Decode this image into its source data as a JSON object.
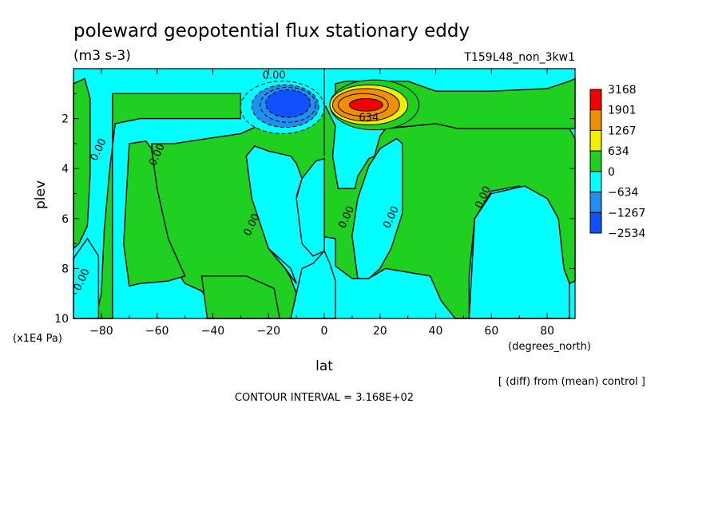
{
  "chart_data": {
    "type": "heatmap",
    "title": "poleward geopotential flux stationary eddy",
    "units": "(m3 s-3)",
    "run_label": "T159L48_non_3kw1",
    "xlabel": "lat",
    "xunits": "(degrees_north)",
    "ylabel": "plev",
    "yunits": "(x1E4 Pa)",
    "note": "[ (diff) from (mean) control ]",
    "contour_interval": "CONTOUR INTERVAL = 3.168E+02",
    "xlim": [
      -90,
      90
    ],
    "ylim": [
      10,
      0
    ],
    "xticks": [
      -80,
      -60,
      -40,
      -20,
      0,
      20,
      40,
      60,
      80
    ],
    "yticks": [
      2,
      4,
      6,
      8,
      10
    ],
    "contour_labels": [
      {
        "text": "0.00",
        "x": -18,
        "y": 0.4
      },
      {
        "text": "634",
        "x": 16,
        "y": 2.1
      },
      {
        "text": "0.00",
        "x": -80,
        "y": 3.3
      },
      {
        "text": "0.00",
        "x": -59,
        "y": 3.5
      },
      {
        "text": "0.00",
        "x": -25,
        "y": 6.3
      },
      {
        "text": "0.00",
        "x": 9,
        "y": 6.0
      },
      {
        "text": "0.00",
        "x": 25,
        "y": 6.0
      },
      {
        "text": "0.00",
        "x": 58,
        "y": 5.2
      },
      {
        "text": "0.00",
        "x": -86,
        "y": 8.5
      }
    ],
    "colorbar": {
      "levels": [
        "3168",
        "1901",
        "1267",
        "634",
        "0",
        "-634",
        "-1267",
        "-2534"
      ],
      "colors": [
        "#f00000",
        "#f09000",
        "#f0f000",
        "#20d020",
        "#00ffff",
        "#2090f0",
        "#1050ff"
      ]
    },
    "regions": {
      "background": "#00ffff",
      "green": "#20d020"
    }
  }
}
